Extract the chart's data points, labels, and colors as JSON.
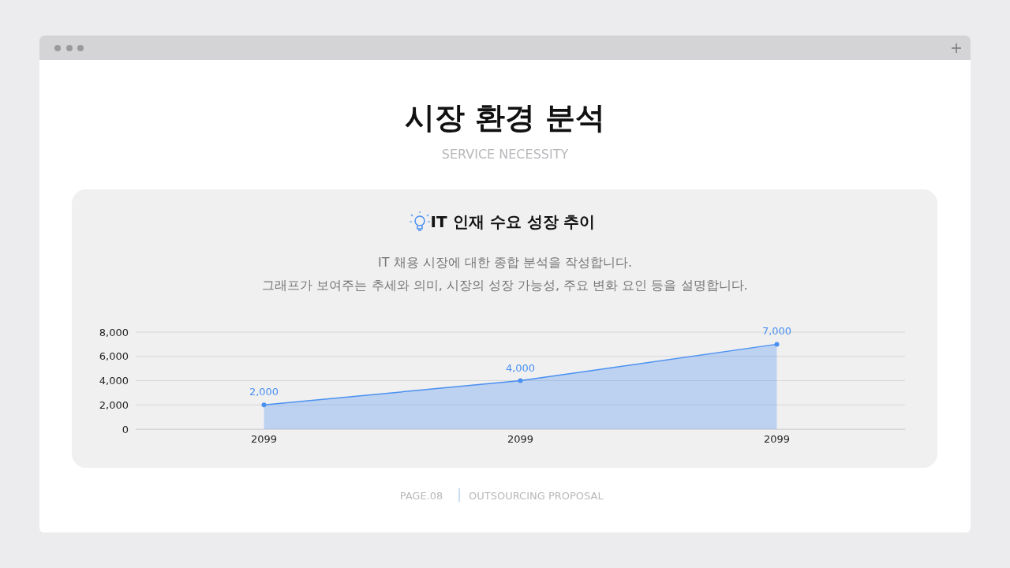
{
  "chart_data": {
    "type": "area",
    "title": "IT 인재 수요 성장 추이",
    "subtitle": "IT 채용 시장에 대한 종합 분석을 작성합니다.\n그래프가 보여주는 추세와 의미, 시장의 성장 가능성, 주요 변화 요인 등을 설명합니다.",
    "annotations": [
      "시장 환경 분석",
      "SERVICE NECESSITY",
      "PAGE.08",
      "OUTSOURCING PROPOSAL"
    ],
    "categories": [
      "2099",
      "2099",
      "2099"
    ],
    "series": [
      {
        "color": "#4a90f0",
        "values": [
          2000,
          4000,
          7000
        ],
        "value_labels": [
          "2,000",
          "4,000",
          "7,000"
        ]
      }
    ],
    "ylim": [
      0,
      8000
    ],
    "yticks": [
      {
        "value": 0,
        "label": "0"
      },
      {
        "value": 2000,
        "label": "2,000"
      },
      {
        "value": 4000,
        "label": "4,000"
      },
      {
        "value": 6000,
        "label": "6,000"
      },
      {
        "value": 8000,
        "label": "8,000"
      }
    ],
    "grid": "y",
    "marker": "circle"
  }
}
